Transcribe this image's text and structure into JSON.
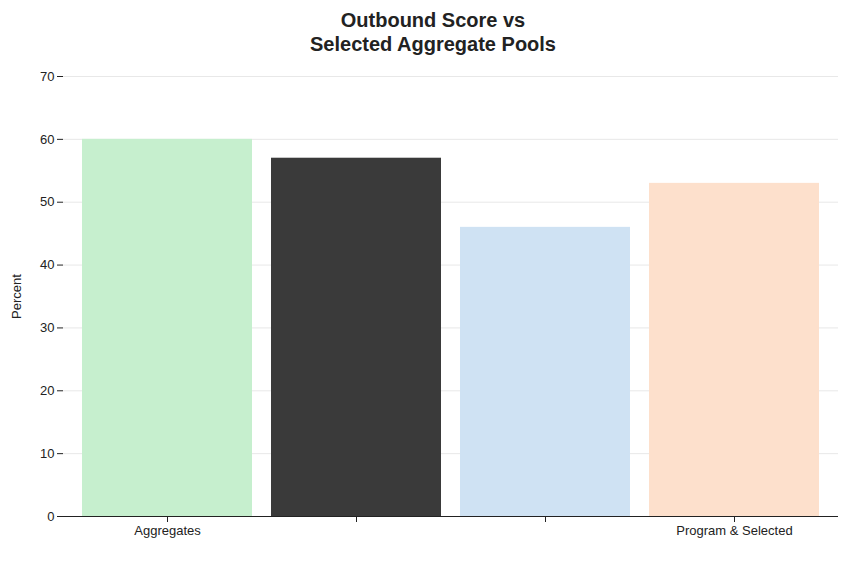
{
  "chart_data": {
    "type": "bar",
    "title": "Outbound Score vs Selected Aggregate Pools",
    "y_label": "Percent",
    "categories": [
      "Aggregates",
      null,
      null,
      "Program & Selected"
    ],
    "values": [
      60,
      57,
      46,
      53
    ],
    "colors": [
      "#c6efce",
      "#3a3a3a",
      "#cfe2f3",
      "#fde0cc"
    ],
    "ylim": [
      0,
      70
    ],
    "yticks": [
      0,
      10,
      20,
      30,
      40,
      50,
      60,
      70
    ],
    "grid": true
  }
}
